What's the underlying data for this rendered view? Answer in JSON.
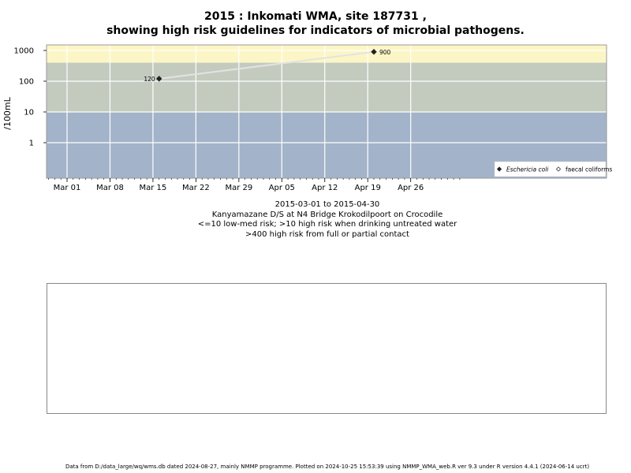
{
  "chart_data": {
    "type": "scatter",
    "title": "2015 : Inkomati WMA, site 187731 ,",
    "subtitle": "showing high risk guidelines for indicators of microbial pathogens.",
    "ylabel": "/100mL",
    "y_scale": "log",
    "y_ticks": [
      1,
      10,
      100,
      1000
    ],
    "y_tick_labels": [
      "1",
      "10",
      "100",
      "1000"
    ],
    "xlim": [
      "2015-02-26",
      "2015-05-04"
    ],
    "x_ticks": [
      "2015-03-01",
      "2015-03-08",
      "2015-03-15",
      "2015-03-22",
      "2015-03-29",
      "2015-04-05",
      "2015-04-12",
      "2015-04-19",
      "2015-04-26"
    ],
    "x_tick_labels": [
      "Mar 01",
      "Mar 08",
      "Mar 15",
      "Mar 22",
      "Mar 29",
      "Apr 05",
      "Apr 12",
      "Apr 19",
      "Apr 26"
    ],
    "risk_bands": [
      {
        "from": null,
        "to": 10,
        "color": "#a3b3c9"
      },
      {
        "from": 10,
        "to": 400,
        "color": "#c3cbbf"
      },
      {
        "from": 400,
        "to": null,
        "color": "#fcf6c6"
      }
    ],
    "series": [
      {
        "name": "Eschericia coli",
        "marker": "filled-diamond",
        "color": "#222222",
        "line_color": "#e3e3e3",
        "points": [
          {
            "x": "2015-03-16",
            "y": 120,
            "label": "120"
          },
          {
            "x": "2015-04-20",
            "y": 900,
            "label": "900"
          }
        ]
      },
      {
        "name": "faecal coliforms",
        "marker": "open-diamond",
        "color": "#222222",
        "points": []
      }
    ],
    "legend_position": "bottom-right",
    "grid": true
  },
  "caption": {
    "date_range": "2015-03-01 to 2015-04-30",
    "site": "Kanyamazane D/S at N4 Bridge Krokodilpoort on Crocodile",
    "guideline_low": "<=10 low-med risk; >10 high risk when drinking untreated water",
    "guideline_high": ">400 high risk from full or partial contact"
  },
  "footer": "Data from D:/data_large/wq/wms.db dated 2024-08-27, mainly NMMP programme. Plotted on 2024-10-25 15:53:39 using NMMP_WMA_web.R ver 9.3 under R version 4.4.1 (2024-06-14 ucrt)"
}
